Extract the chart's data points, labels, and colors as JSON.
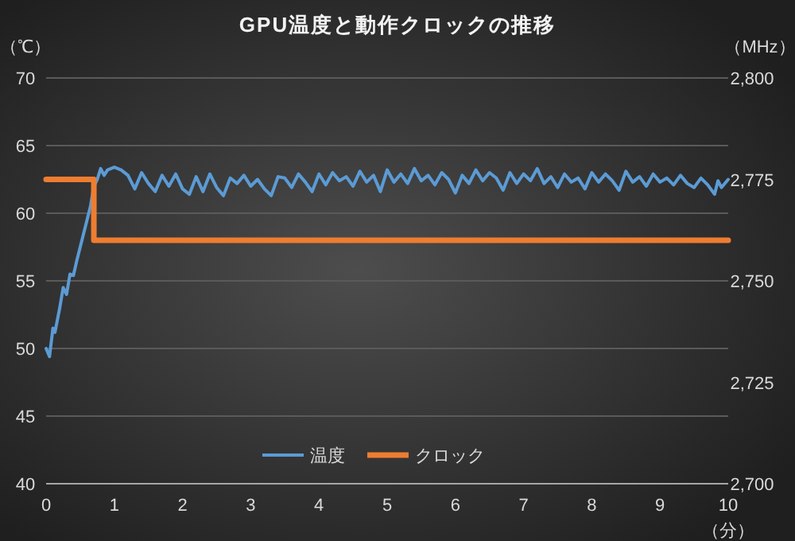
{
  "chart_data": {
    "type": "line",
    "title": "GPU温度と動作クロックの推移",
    "xlabel": "（分）",
    "ylabel": "（℃）",
    "y2label": "（MHz）",
    "xlim": [
      0,
      10
    ],
    "xticks": [
      0,
      1,
      2,
      3,
      4,
      5,
      6,
      7,
      8,
      9,
      10
    ],
    "ylim": [
      40,
      70
    ],
    "yticks": [
      40,
      45,
      50,
      55,
      60,
      65,
      70
    ],
    "y2lim": [
      2700,
      2800
    ],
    "y2ticks": [
      {
        "value": 2700,
        "label": "2,700"
      },
      {
        "value": 2725,
        "label": "2,725"
      },
      {
        "value": 2750,
        "label": "2,750"
      },
      {
        "value": 2775,
        "label": "2,775"
      },
      {
        "value": 2800,
        "label": "2,800"
      }
    ],
    "grid": "y",
    "legend": "bottom",
    "series": [
      {
        "name": "温度",
        "color": "#5b9bd5",
        "x": [
          0,
          0.05,
          0.1,
          0.13,
          0.2,
          0.25,
          0.3,
          0.35,
          0.4,
          0.45,
          0.5,
          0.55,
          0.6,
          0.65,
          0.7,
          0.75,
          0.8,
          0.85,
          0.9,
          1.0,
          1.1,
          1.2,
          1.3,
          1.4,
          1.5,
          1.6,
          1.7,
          1.8,
          1.9,
          2.0,
          2.1,
          2.2,
          2.3,
          2.4,
          2.5,
          2.6,
          2.7,
          2.8,
          2.9,
          3.0,
          3.1,
          3.2,
          3.3,
          3.4,
          3.5,
          3.6,
          3.7,
          3.8,
          3.9,
          4.0,
          4.1,
          4.2,
          4.3,
          4.4,
          4.5,
          4.6,
          4.7,
          4.8,
          4.9,
          5.0,
          5.1,
          5.2,
          5.3,
          5.4,
          5.5,
          5.6,
          5.7,
          5.8,
          5.9,
          6.0,
          6.1,
          6.2,
          6.3,
          6.4,
          6.5,
          6.6,
          6.7,
          6.8,
          6.9,
          7.0,
          7.1,
          7.2,
          7.3,
          7.4,
          7.5,
          7.6,
          7.7,
          7.8,
          7.9,
          8.0,
          8.1,
          8.2,
          8.3,
          8.4,
          8.5,
          8.6,
          8.7,
          8.8,
          8.9,
          9.0,
          9.1,
          9.2,
          9.3,
          9.4,
          9.5,
          9.6,
          9.7,
          9.8,
          9.85,
          9.9,
          10
        ],
        "values": [
          50,
          49.4,
          51.5,
          51.2,
          53,
          54.5,
          54,
          55.5,
          55.4,
          56.5,
          57.5,
          58.5,
          59.5,
          60.5,
          62,
          62.5,
          63.3,
          62.8,
          63.2,
          63.4,
          63.2,
          62.8,
          61.8,
          63,
          62.2,
          61.6,
          62.8,
          62,
          62.9,
          61.8,
          61.4,
          62.7,
          61.6,
          62.9,
          61.9,
          61.3,
          62.6,
          62.2,
          62.8,
          62,
          62.5,
          61.8,
          61.3,
          62.7,
          62.6,
          61.9,
          62.9,
          62.3,
          61.6,
          62.9,
          62.1,
          63,
          62.4,
          62.7,
          62,
          63.1,
          62.3,
          62.8,
          61.6,
          63.2,
          62.3,
          62.9,
          62.2,
          63.3,
          62.4,
          62.8,
          62.1,
          63,
          62.5,
          61.5,
          62.8,
          62.2,
          63.2,
          62.4,
          63,
          62.6,
          61.7,
          63,
          62.2,
          62.9,
          62.4,
          63.3,
          62.2,
          62.7,
          61.9,
          62.9,
          62.3,
          62.6,
          61.8,
          63,
          62.3,
          62.9,
          62.4,
          61.7,
          63.1,
          62.3,
          62.7,
          62,
          62.9,
          62.3,
          62.6,
          62.1,
          62.8,
          62.2,
          61.9,
          62.6,
          62.1,
          61.4,
          62.4,
          61.9,
          62.5
        ]
      },
      {
        "name": "クロック",
        "color": "#ed7d31",
        "type": "step",
        "axis": "y2",
        "x": [
          0,
          0.7,
          10
        ],
        "values": [
          2775,
          2760,
          2760
        ]
      }
    ]
  }
}
